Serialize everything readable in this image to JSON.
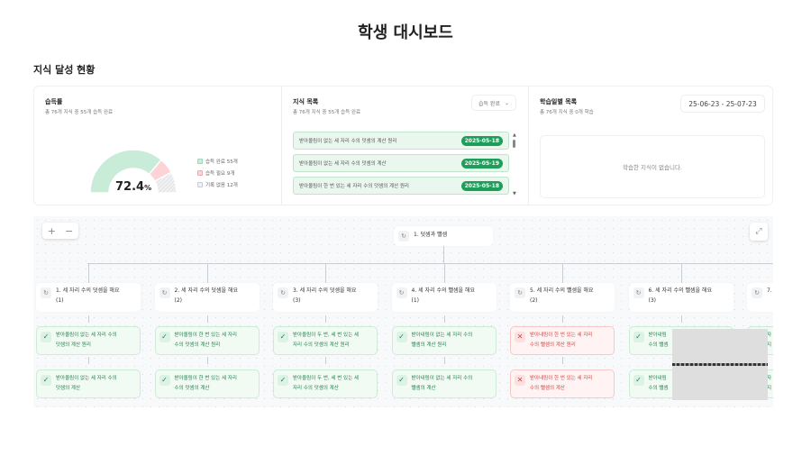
{
  "title": "학생 대시보드",
  "section": "지식 달성 현황",
  "mastery": {
    "title": "습득률",
    "subtitle": "총 76개 지식 중 55개 습득 완료",
    "percent": "72.4",
    "percent_unit": "%",
    "segments": [
      {
        "label": "습득 완료 55개",
        "value": 55,
        "color": "#c9ecd9"
      },
      {
        "label": "습득 필요 9개",
        "value": 9,
        "color": "#fdd3d6"
      },
      {
        "label": "기록 없음 12개",
        "value": 12,
        "color": "#e6e7eb"
      }
    ]
  },
  "knowledge": {
    "title": "지식 목록",
    "subtitle": "총 76개 지식 중 55개 습득 완료",
    "filter": "습득 완료",
    "items": [
      {
        "text": "받아올림이 없는 세 자리 수의 덧셈의 계산 원리",
        "date": "2025-05-18"
      },
      {
        "text": "받아올림이 없는 세 자리 수의 덧셈의 계산",
        "date": "2025-05-19"
      },
      {
        "text": "받아올림이 한 번 있는 세 자리 수의 덧셈의 계산 원리",
        "date": "2025-05-18"
      }
    ]
  },
  "daily": {
    "title": "학습일별 목록",
    "subtitle": "총 76개 지식 중 0개 학습",
    "range": "25-06-23 - 25-07-23",
    "empty": "학습한 지식이 없습니다."
  },
  "tree": {
    "root": "1. 덧셈과 뺄셈",
    "children": [
      {
        "l1": "1. 세 자리 수의 덧셈을 해요",
        "l2": "(1)",
        "items": [
          {
            "s": "ok",
            "a": "받아올림이 없는 세 자리 수의",
            "b": "덧셈의 계산 원리"
          },
          {
            "s": "ok",
            "a": "받아올림이 없는 세 자리 수의",
            "b": "덧셈의 계산"
          }
        ]
      },
      {
        "l1": "2. 세 자리 수의 덧셈을 해요",
        "l2": "(2)",
        "items": [
          {
            "s": "ok",
            "a": "받아올림이 한 번 있는 세 자리",
            "b": "수의 덧셈의 계산 원리"
          },
          {
            "s": "ok",
            "a": "받아올림이 한 번 있는 세 자리",
            "b": "수의 덧셈의 계산"
          }
        ]
      },
      {
        "l1": "3. 세 자리 수의 덧셈을 해요",
        "l2": "(3)",
        "items": [
          {
            "s": "ok",
            "a": "받아올림이 두 번, 세 번 있는 세",
            "b": "자리 수의 덧셈의 계산 원리"
          },
          {
            "s": "ok",
            "a": "받아올림이 두 번, 세 번 있는 세",
            "b": "자리 수의 덧셈의 계산"
          }
        ]
      },
      {
        "l1": "4. 세 자리 수의 뺄셈을 해요",
        "l2": "(1)",
        "items": [
          {
            "s": "ok",
            "a": "받아내림이 없는 세 자리 수의",
            "b": "뺄셈의 계산 원리"
          },
          {
            "s": "ok",
            "a": "받아내림이 없는 세 자리 수의",
            "b": "뺄셈의 계산"
          }
        ]
      },
      {
        "l1": "5. 세 자리 수의 뺄셈을 해요",
        "l2": "(2)",
        "items": [
          {
            "s": "bad",
            "a": "받아내림이 한 번 있는 세 자리",
            "b": "수의 뺄셈의 계산 원리"
          },
          {
            "s": "bad",
            "a": "받아내림이 한 번 있는 세 자리",
            "b": "수의 뺄셈의 계산"
          }
        ]
      },
      {
        "l1": "6. 세 자리 수의 뺄셈을 해요",
        "l2": "(3)",
        "items": [
          {
            "s": "ok",
            "a": "받아내림",
            "b": "수의 뺄셈"
          },
          {
            "s": "ok",
            "a": "받아내림",
            "b": "수의 뺄셈"
          }
        ]
      },
      {
        "l1": "7.",
        "l2": "",
        "items": [
          {
            "s": "ok",
            "a": "자",
            "b": "지"
          },
          {
            "s": "ok",
            "a": "자",
            "b": "지"
          }
        ]
      }
    ]
  },
  "controls": {
    "zoom_in": "+",
    "zoom_out": "−",
    "fit": "⤢"
  }
}
